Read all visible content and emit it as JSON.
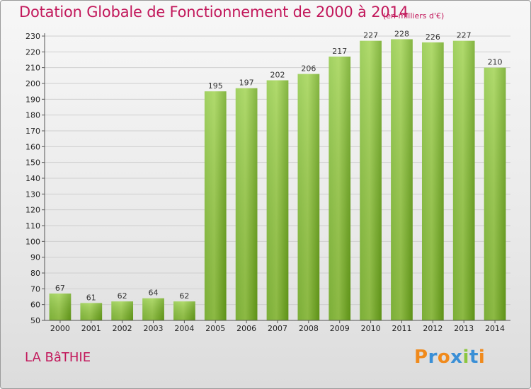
{
  "header": {
    "title": "Dotation Globale de Fonctionnement de 2000 à 2014",
    "unit": "(en milliers d'€)"
  },
  "footer": {
    "commune": "LA BâTHIE",
    "brand_letters": [
      "P",
      "r",
      "o",
      "x",
      "i",
      "t",
      "i"
    ],
    "brand_colors": [
      "#f08a1c",
      "#3a8fd6",
      "#f08a1c",
      "#3a8fd6",
      "#8cc63f",
      "#3a8fd6",
      "#f08a1c"
    ]
  },
  "colors": {
    "title": "#c2185b",
    "bar_light": "#9fd24d",
    "bar_dark": "#6aa51a",
    "grid": "#cfcfcf"
  },
  "chart_data": {
    "type": "bar",
    "title": "Dotation Globale de Fonctionnement de 2000 à 2014",
    "subtitle": "(en milliers d'€)",
    "xlabel": "",
    "ylabel": "",
    "categories": [
      "2000",
      "2001",
      "2002",
      "2003",
      "2004",
      "2005",
      "2006",
      "2007",
      "2008",
      "2009",
      "2010",
      "2011",
      "2012",
      "2013",
      "2014"
    ],
    "values": [
      67,
      61,
      62,
      64,
      62,
      195,
      197,
      202,
      206,
      217,
      227,
      228,
      226,
      227,
      210
    ],
    "ylim": [
      50,
      230
    ],
    "yticks": [
      50,
      60,
      70,
      80,
      90,
      100,
      110,
      120,
      130,
      140,
      150,
      160,
      170,
      180,
      190,
      200,
      210,
      220,
      230
    ],
    "grid": true,
    "data_labels": true
  }
}
